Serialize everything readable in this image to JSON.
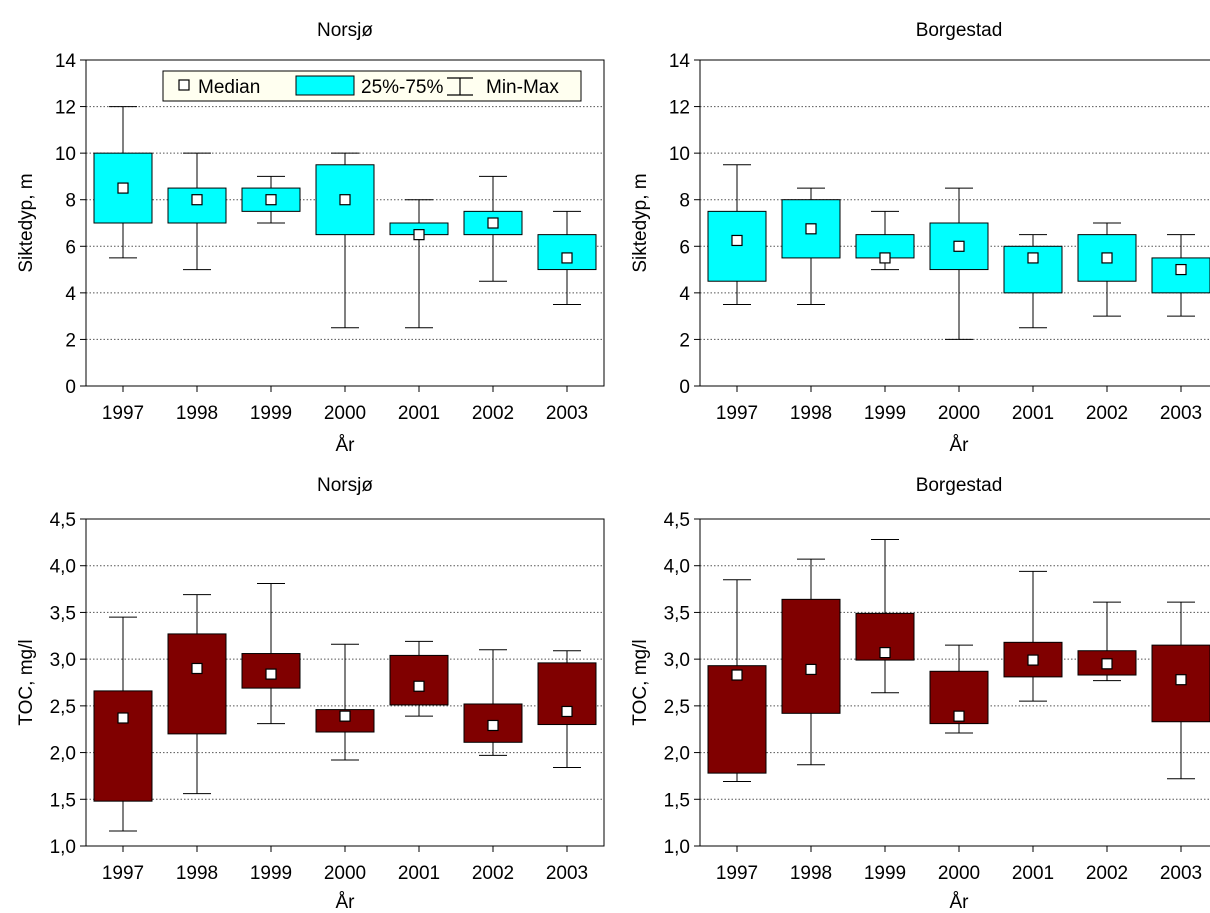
{
  "legend": {
    "median_label": "Median",
    "box_label": "25%-75%",
    "whisker_label": "Min-Max"
  },
  "colors": {
    "secchi_box": "#00ffff",
    "toc_box": "#800000",
    "median_marker": "#ffffff",
    "legend_bg": "#fffff0",
    "grid": "#555555"
  },
  "chart_data": [
    {
      "type": "box",
      "title": "Norsjø",
      "xlabel": "År",
      "ylabel": "Siktedyp, m",
      "ylim": [
        0,
        14
      ],
      "yticks": [
        "0",
        "2",
        "4",
        "6",
        "8",
        "10",
        "12",
        "14"
      ],
      "grid": true,
      "legend_position": "top",
      "categories": [
        "1997",
        "1998",
        "1999",
        "2000",
        "2001",
        "2002",
        "2003"
      ],
      "min": [
        5.5,
        5.0,
        7.0,
        2.5,
        2.5,
        4.5,
        3.5
      ],
      "q1": [
        7.0,
        7.0,
        7.5,
        6.5,
        6.5,
        6.5,
        5.0
      ],
      "median": [
        8.5,
        8.0,
        8.0,
        8.0,
        6.5,
        7.0,
        5.5
      ],
      "q3": [
        10.0,
        8.5,
        8.5,
        9.5,
        7.0,
        7.5,
        6.5
      ],
      "max": [
        12.0,
        10.0,
        9.0,
        10.0,
        8.0,
        9.0,
        7.5
      ]
    },
    {
      "type": "box",
      "title": "Borgestad",
      "xlabel": "År",
      "ylabel": "Siktedyp, m",
      "ylim": [
        0,
        14
      ],
      "yticks": [
        "0",
        "2",
        "4",
        "6",
        "8",
        "10",
        "12",
        "14"
      ],
      "grid": true,
      "categories": [
        "1997",
        "1998",
        "1999",
        "2000",
        "2001",
        "2002",
        "2003"
      ],
      "min": [
        3.5,
        3.5,
        5.0,
        2.0,
        2.5,
        3.0,
        3.0
      ],
      "q1": [
        4.5,
        5.5,
        5.5,
        5.0,
        4.0,
        4.5,
        4.0
      ],
      "median": [
        6.25,
        6.75,
        5.5,
        6.0,
        5.5,
        5.5,
        5.0
      ],
      "q3": [
        7.5,
        8.0,
        6.5,
        7.0,
        6.0,
        6.5,
        5.5
      ],
      "max": [
        9.5,
        8.5,
        7.5,
        8.5,
        6.5,
        7.0,
        6.5
      ]
    },
    {
      "type": "box",
      "title": "Norsjø",
      "xlabel": "År",
      "ylabel": "TOC, mg/l",
      "ylim": [
        1.0,
        4.5
      ],
      "yticks": [
        "1,0",
        "1,5",
        "2,0",
        "2,5",
        "3,0",
        "3,5",
        "4,0",
        "4,5"
      ],
      "grid": true,
      "categories": [
        "1997",
        "1998",
        "1999",
        "2000",
        "2001",
        "2002",
        "2003"
      ],
      "min": [
        1.16,
        1.56,
        2.31,
        1.92,
        2.39,
        1.97,
        1.84
      ],
      "q1": [
        1.48,
        2.2,
        2.69,
        2.22,
        2.51,
        2.11,
        2.3
      ],
      "median": [
        2.37,
        2.9,
        2.84,
        2.39,
        2.71,
        2.29,
        2.44
      ],
      "q3": [
        2.66,
        3.27,
        3.06,
        2.46,
        3.04,
        2.52,
        2.96
      ],
      "max": [
        3.45,
        3.69,
        3.81,
        3.16,
        3.19,
        3.1,
        3.09
      ]
    },
    {
      "type": "box",
      "title": "Borgestad",
      "xlabel": "År",
      "ylabel": "TOC, mg/l",
      "ylim": [
        1.0,
        4.5
      ],
      "yticks": [
        "1,0",
        "1,5",
        "2,0",
        "2,5",
        "3,0",
        "3,5",
        "4,0",
        "4,5"
      ],
      "grid": true,
      "categories": [
        "1997",
        "1998",
        "1999",
        "2000",
        "2001",
        "2002",
        "2003"
      ],
      "min": [
        1.69,
        1.87,
        2.64,
        2.21,
        2.55,
        2.77,
        1.72
      ],
      "q1": [
        1.78,
        2.42,
        2.99,
        2.31,
        2.81,
        2.83,
        2.33
      ],
      "median": [
        2.83,
        2.89,
        3.07,
        2.39,
        2.99,
        2.95,
        2.78
      ],
      "q3": [
        2.93,
        3.64,
        3.49,
        2.87,
        3.18,
        3.09,
        3.15
      ],
      "max": [
        3.85,
        4.07,
        4.28,
        3.15,
        3.94,
        3.61,
        3.61
      ]
    }
  ]
}
